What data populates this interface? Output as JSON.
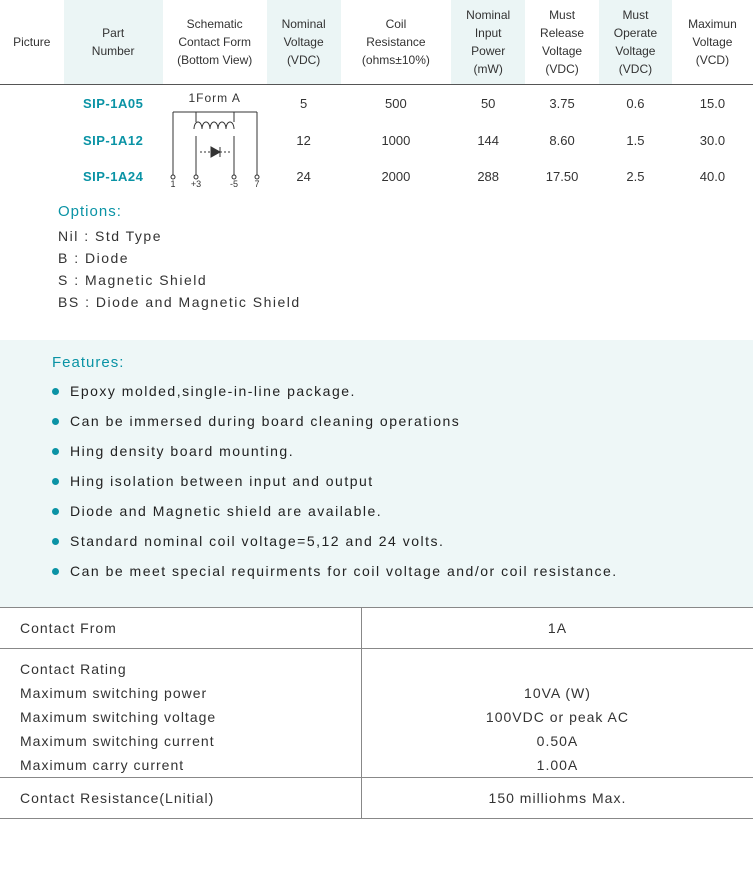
{
  "headers": [
    "Picture",
    "Part\nNumber",
    "Schematic\nContact Form\n(Bottom View)",
    "Nominal\nVoltage\n(VDC)",
    "Coil\nResistance\n(ohms±10%)",
    "Nominal\nInput\nPower\n(mW)",
    "Must\nRelease\nVoltage\n(VDC)",
    "Must\nOperate\nVoltage\n(VDC)",
    "Maximun\nVoltage\n(VCD)"
  ],
  "schematic_label": "1Form  A",
  "pin_labels": [
    "1",
    "+3",
    "-5",
    "7"
  ],
  "rows": [
    {
      "part": "SIP-1A05",
      "v": "5",
      "r": "500",
      "p": "50",
      "rel": "3.75",
      "op": "0.6",
      "max": "15.0"
    },
    {
      "part": "SIP-1A12",
      "v": "12",
      "r": "1000",
      "p": "144",
      "rel": "8.60",
      "op": "1.5",
      "max": "30.0"
    },
    {
      "part": "SIP-1A24",
      "v": "24",
      "r": "2000",
      "p": "288",
      "rel": "17.50",
      "op": "2.5",
      "max": "40.0"
    }
  ],
  "options": {
    "title": "Options:",
    "lines": [
      "Nil : Std Type",
      "B : Diode",
      "S : Magnetic Shield",
      "BS : Diode and Magnetic Shield"
    ]
  },
  "features": {
    "title": "Features:",
    "items": [
      "Epoxy molded,single-in-line package.",
      "Can be immersed during board cleaning operations",
      "Hing density board mounting.",
      "Hing isolation between input and output",
      "Diode and Magnetic shield are available.",
      "Standard nominal coil voltage=5,12 and 24 volts.",
      "Can be meet special requirments for coil voltage and/or coil resistance."
    ]
  },
  "specs": {
    "contact_from_label": "Contact From",
    "contact_from_value": "1A",
    "contact_rating_label": "Contact Rating",
    "rows": [
      {
        "label": "Maximum switching power",
        "value": "10VA (W)"
      },
      {
        "label": "Maximum switching voltage",
        "value": "100VDC or peak AC"
      },
      {
        "label": "Maximum switching current",
        "value": "0.50A"
      },
      {
        "label": "Maximum carry current",
        "value": "1.00A"
      }
    ],
    "contact_res_label": "Contact Resistance(Lnitial)",
    "contact_res_value": "150 milliohms Max."
  },
  "colors": {
    "accent": "#0a93a5",
    "header_alt": "#ebf5f5",
    "feature_bg": "#eef7f7"
  }
}
